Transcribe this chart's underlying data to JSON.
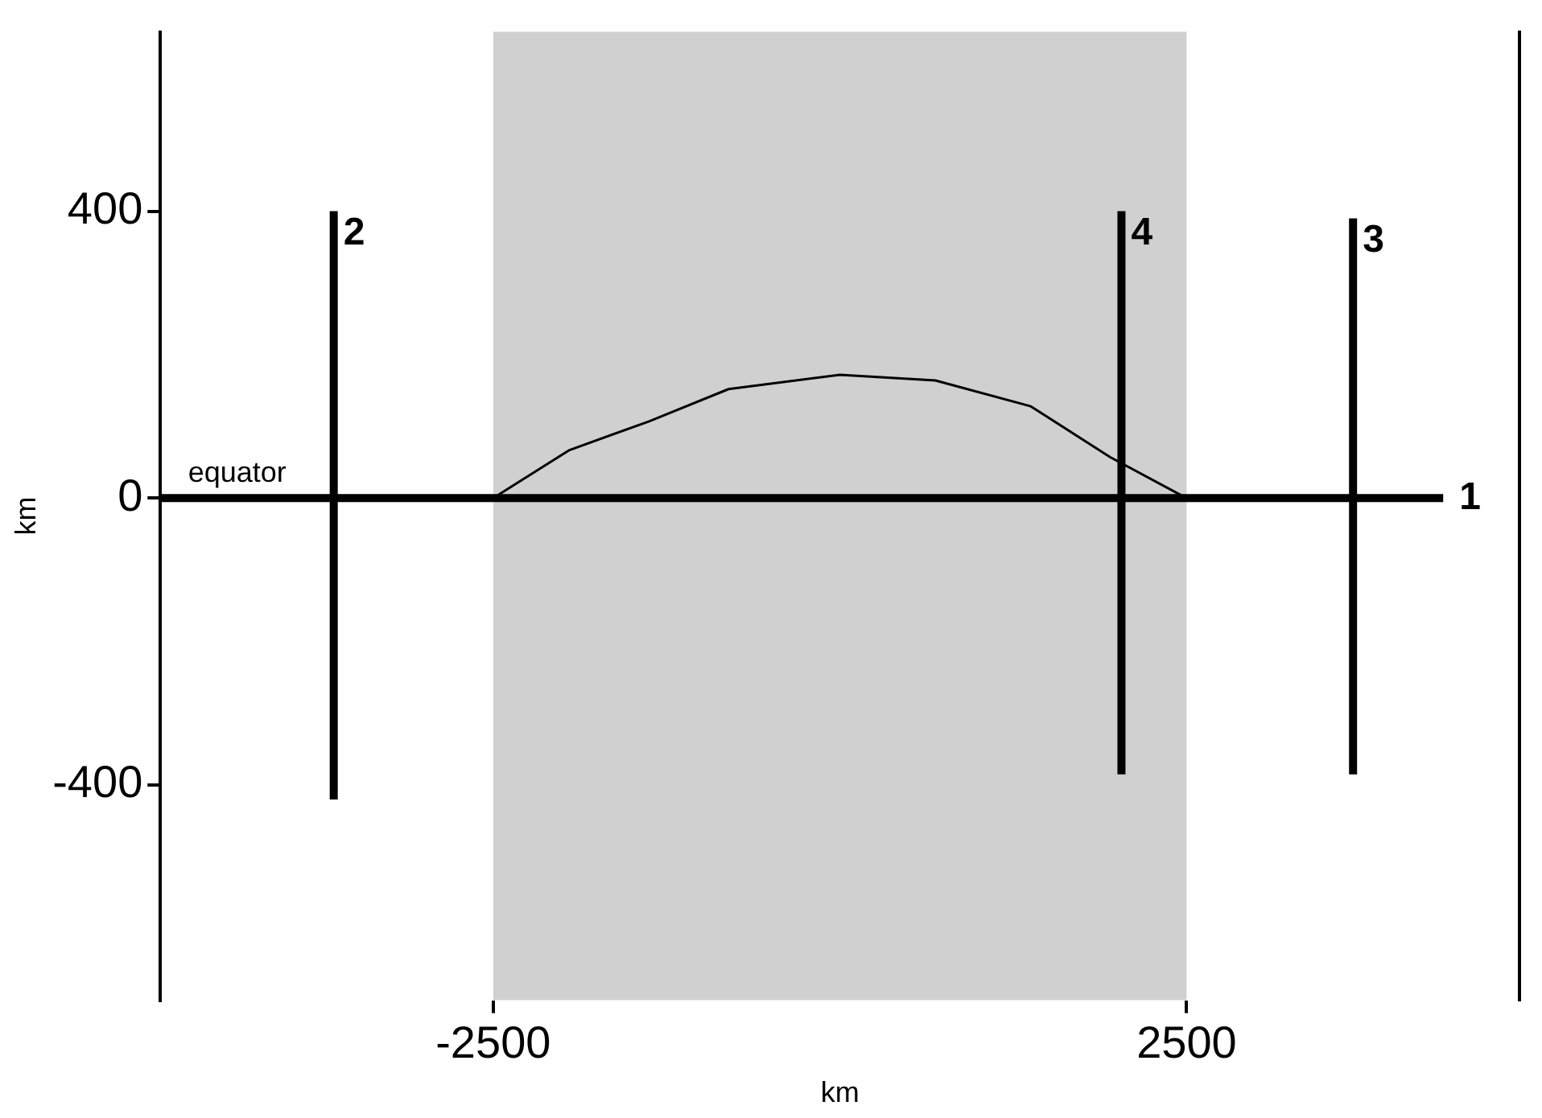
{
  "chart_data": {
    "type": "line",
    "xlabel": "km",
    "ylabel": "km",
    "xlim": [
      -4900,
      4900
    ],
    "ylim": [
      -700,
      650
    ],
    "xticks": [
      -2500,
      2500
    ],
    "yticks": [
      -400,
      0,
      400
    ],
    "grid": false,
    "legend": false,
    "marker": "none",
    "bands": [
      {
        "axis": "x",
        "from": -2500,
        "to": 2500,
        "color": "#d0d0d0"
      }
    ],
    "annotations": [
      {
        "text": "equator",
        "x": -4700,
        "y": 0
      }
    ],
    "series": [
      {
        "name": "1",
        "color": "#000000",
        "x": [
          -4900,
          4350
        ],
        "values": [
          0,
          0
        ]
      },
      {
        "name": "2",
        "color": "#000000",
        "x": [
          -3650,
          -3650
        ],
        "values": [
          -420,
          400
        ]
      },
      {
        "name": "3",
        "color": "#000000",
        "x": [
          3700,
          3700
        ],
        "values": [
          -385,
          390
        ]
      },
      {
        "name": "4",
        "color": "#000000",
        "x": [
          2030,
          2030
        ],
        "values": [
          -385,
          400
        ]
      },
      {
        "color": "#000000",
        "x": [
          -2500,
          -1950,
          -1376,
          -803,
          0,
          688,
          1376,
          1950,
          2500
        ],
        "values": [
          0,
          67,
          107,
          152,
          172,
          164,
          128,
          57,
          0
        ]
      }
    ]
  }
}
